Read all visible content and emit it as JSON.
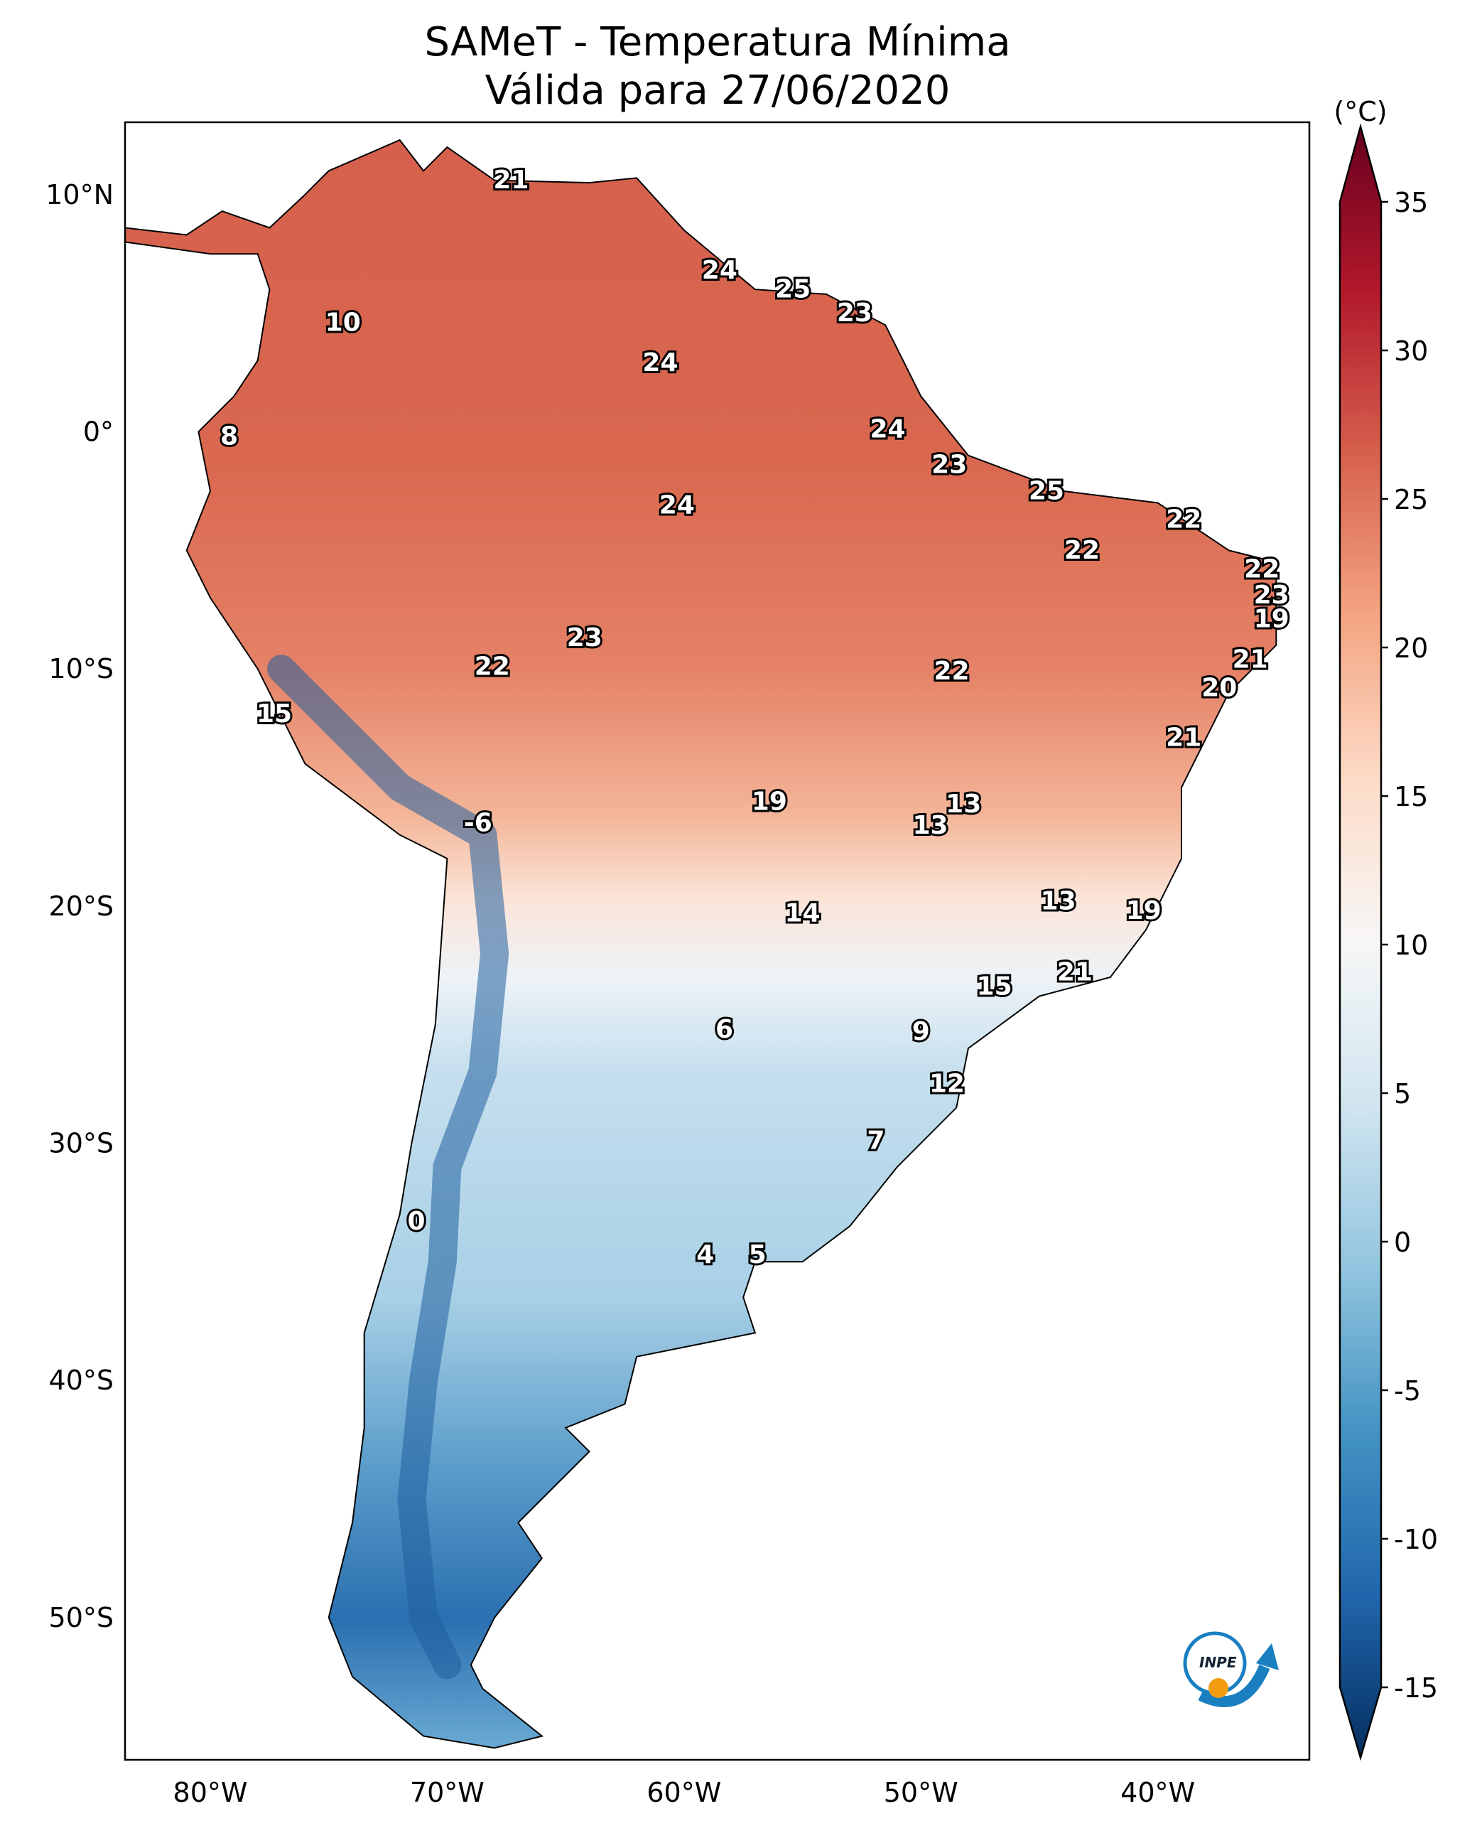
{
  "title": {
    "line1": "SAMeT - Temperatura Mínima",
    "line2": "Válida para 27/06/2020"
  },
  "colorbar": {
    "unit_label": "(°C)",
    "min": -15,
    "max": 35,
    "ticks": [
      "35",
      "30",
      "25",
      "20",
      "15",
      "10",
      "5",
      "0",
      "-5",
      "-10",
      "-15"
    ],
    "tick_values": [
      35,
      30,
      25,
      20,
      15,
      10,
      5,
      0,
      -5,
      -10,
      -15
    ],
    "colormap": [
      "#053061",
      "#2166ac",
      "#4393c3",
      "#92c5de",
      "#d1e5f0",
      "#f7f7f7",
      "#fddbc7",
      "#f4a582",
      "#d6604d",
      "#b2182b",
      "#67001f"
    ]
  },
  "axes": {
    "lat_ticks": [
      {
        "value": 10,
        "label": "10°N"
      },
      {
        "value": 0,
        "label": "0°"
      },
      {
        "value": -10,
        "label": "10°S"
      },
      {
        "value": -20,
        "label": "20°S"
      },
      {
        "value": -30,
        "label": "30°S"
      },
      {
        "value": -40,
        "label": "40°S"
      },
      {
        "value": -50,
        "label": "50°S"
      }
    ],
    "lon_ticks": [
      {
        "value": -80,
        "label": "80°W"
      },
      {
        "value": -70,
        "label": "70°W"
      },
      {
        "value": -60,
        "label": "60°W"
      },
      {
        "value": -50,
        "label": "50°W"
      },
      {
        "value": -40,
        "label": "40°W"
      }
    ],
    "lon_range": [
      -83.6,
      -33.6
    ],
    "lat_range": [
      -56.0,
      13.05
    ]
  },
  "station_values": [
    {
      "lon": -67.3,
      "lat": 10.6,
      "value": "21"
    },
    {
      "lon": -58.5,
      "lat": 6.8,
      "value": "24"
    },
    {
      "lon": -55.4,
      "lat": 6.0,
      "value": "25"
    },
    {
      "lon": -52.8,
      "lat": 5.0,
      "value": "23"
    },
    {
      "lon": -74.4,
      "lat": 4.6,
      "value": "10"
    },
    {
      "lon": -61.0,
      "lat": 2.9,
      "value": "24"
    },
    {
      "lon": -79.2,
      "lat": -0.2,
      "value": "8"
    },
    {
      "lon": -51.4,
      "lat": 0.1,
      "value": "24"
    },
    {
      "lon": -48.8,
      "lat": -1.4,
      "value": "23"
    },
    {
      "lon": -60.3,
      "lat": -3.1,
      "value": "24"
    },
    {
      "lon": -44.7,
      "lat": -2.5,
      "value": "25"
    },
    {
      "lon": -38.9,
      "lat": -3.7,
      "value": "22"
    },
    {
      "lon": -43.2,
      "lat": -5.0,
      "value": "22"
    },
    {
      "lon": -35.6,
      "lat": -5.8,
      "value": "22"
    },
    {
      "lon": -35.2,
      "lat": -6.9,
      "value": "23"
    },
    {
      "lon": -35.2,
      "lat": -7.9,
      "value": "19"
    },
    {
      "lon": -64.2,
      "lat": -8.7,
      "value": "23"
    },
    {
      "lon": -36.1,
      "lat": -9.6,
      "value": "21"
    },
    {
      "lon": -68.1,
      "lat": -9.9,
      "value": "22"
    },
    {
      "lon": -48.7,
      "lat": -10.1,
      "value": "22"
    },
    {
      "lon": -37.4,
      "lat": -10.8,
      "value": "20"
    },
    {
      "lon": -38.9,
      "lat": -12.9,
      "value": "21"
    },
    {
      "lon": -77.3,
      "lat": -11.9,
      "value": "15"
    },
    {
      "lon": -48.2,
      "lat": -15.7,
      "value": "13"
    },
    {
      "lon": -56.4,
      "lat": -15.6,
      "value": "19"
    },
    {
      "lon": -68.7,
      "lat": -16.5,
      "value": "-6"
    },
    {
      "lon": -49.6,
      "lat": -16.6,
      "value": "13"
    },
    {
      "lon": -44.2,
      "lat": -19.8,
      "value": "13"
    },
    {
      "lon": -55.0,
      "lat": -20.3,
      "value": "14"
    },
    {
      "lon": -40.6,
      "lat": -20.2,
      "value": "19"
    },
    {
      "lon": -43.5,
      "lat": -22.8,
      "value": "21"
    },
    {
      "lon": -46.9,
      "lat": -23.4,
      "value": "15"
    },
    {
      "lon": -58.3,
      "lat": -25.2,
      "value": "6"
    },
    {
      "lon": -50.0,
      "lat": -25.3,
      "value": "9"
    },
    {
      "lon": -48.9,
      "lat": -27.5,
      "value": "12"
    },
    {
      "lon": -51.9,
      "lat": -29.9,
      "value": "7"
    },
    {
      "lon": -71.3,
      "lat": -33.3,
      "value": "0"
    },
    {
      "lon": -59.1,
      "lat": -34.7,
      "value": "4"
    },
    {
      "lon": -56.9,
      "lat": -34.7,
      "value": "5"
    }
  ],
  "logo": {
    "text": "INPE"
  }
}
